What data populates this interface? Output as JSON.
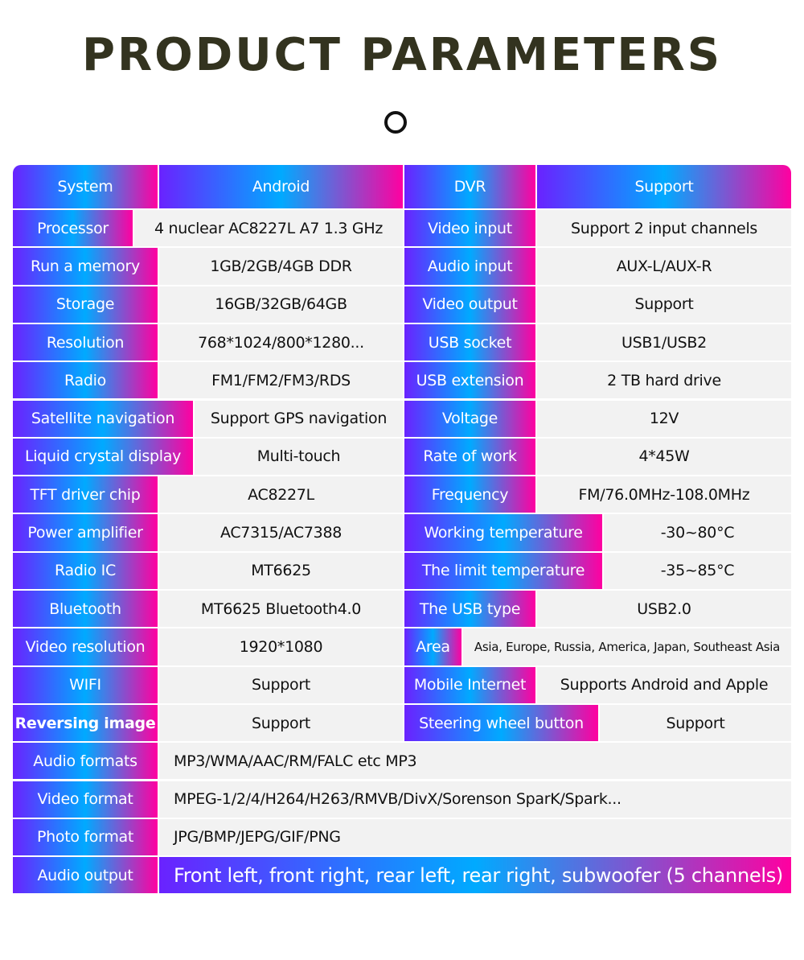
{
  "title": "PRODUCT PARAMETERS",
  "header_icon": "circle-icon",
  "colors": {
    "gradient_start": "#6a22ff",
    "gradient_mid": "#00aaff",
    "gradient_end": "#ff00a0",
    "value_bg": "#f2f2f2",
    "title": "#33331f"
  },
  "rows": [
    {
      "left_label": "System",
      "left_value": "Android",
      "right_label": "DVR",
      "right_value": "Support"
    },
    {
      "left_label": "Processor",
      "left_value": "4 nuclear   AC8227L A7 1.3 GHz",
      "right_label": "Video input",
      "right_value": "Support 2 input channels"
    },
    {
      "left_label": "Run a memory",
      "left_value": "1GB/2GB/4GB  DDR",
      "right_label": "Audio input",
      "right_value": "AUX-L/AUX-R"
    },
    {
      "left_label": "Storage",
      "left_value": "16GB/32GB/64GB",
      "right_label": "Video output",
      "right_value": "Support"
    },
    {
      "left_label": "Resolution",
      "left_value": "768*1024/800*1280...",
      "right_label": "USB socket",
      "right_value": "USB1/USB2"
    },
    {
      "left_label": "Radio",
      "left_value": "FM1/FM2/FM3/RDS",
      "right_label": "USB extension",
      "right_value": "2 TB hard drive"
    },
    {
      "left_label": "Satellite navigation",
      "left_value": "Support GPS navigation",
      "right_label": "Voltage",
      "right_value": "12V"
    },
    {
      "left_label": "Liquid crystal display",
      "left_value": "Multi-touch",
      "right_label": "Rate of work",
      "right_value": "4*45W"
    },
    {
      "left_label": "TFT driver chip",
      "left_value": "AC8227L",
      "right_label": "Frequency",
      "right_value": "FM/76.0MHz-108.0MHz"
    },
    {
      "left_label": "Power amplifier",
      "left_value": "AC7315/AC7388",
      "right_label": "Working temperature",
      "right_value": "-30~80°C"
    },
    {
      "left_label": "Radio IC",
      "left_value": "MT6625",
      "right_label": "The limit temperature",
      "right_value": "-35~85°C"
    },
    {
      "left_label": "Bluetooth",
      "left_value": "MT6625 Bluetooth4.0",
      "right_label": "The USB type",
      "right_value": "USB2.0"
    },
    {
      "left_label": "Video resolution",
      "left_value": "1920*1080",
      "right_label": "Area",
      "right_value": "Asia, Europe, Russia, America, Japan, Southeast Asia"
    },
    {
      "left_label": "WIFI",
      "left_value": "Support",
      "right_label": "Mobile Internet",
      "right_value": "Supports Android and Apple"
    },
    {
      "left_label": "Reversing image",
      "left_value": "Support",
      "right_label": "Steering wheel button",
      "right_value": "Support"
    },
    {
      "left_label": "Audio formats",
      "left_value": "MP3/WMA/AAC/RM/FALC etc MP3"
    },
    {
      "left_label": "Video format",
      "left_value": "MPEG-1/2/4/H264/H263/RMVB/DivX/Sorenson SparK/Spark..."
    },
    {
      "left_label": "Photo format",
      "left_value": "JPG/BMP/JEPG/GIF/PNG"
    },
    {
      "left_label": "Audio output",
      "left_value": "Front left, front right, rear left, rear right, subwoofer (5 channels)"
    }
  ]
}
